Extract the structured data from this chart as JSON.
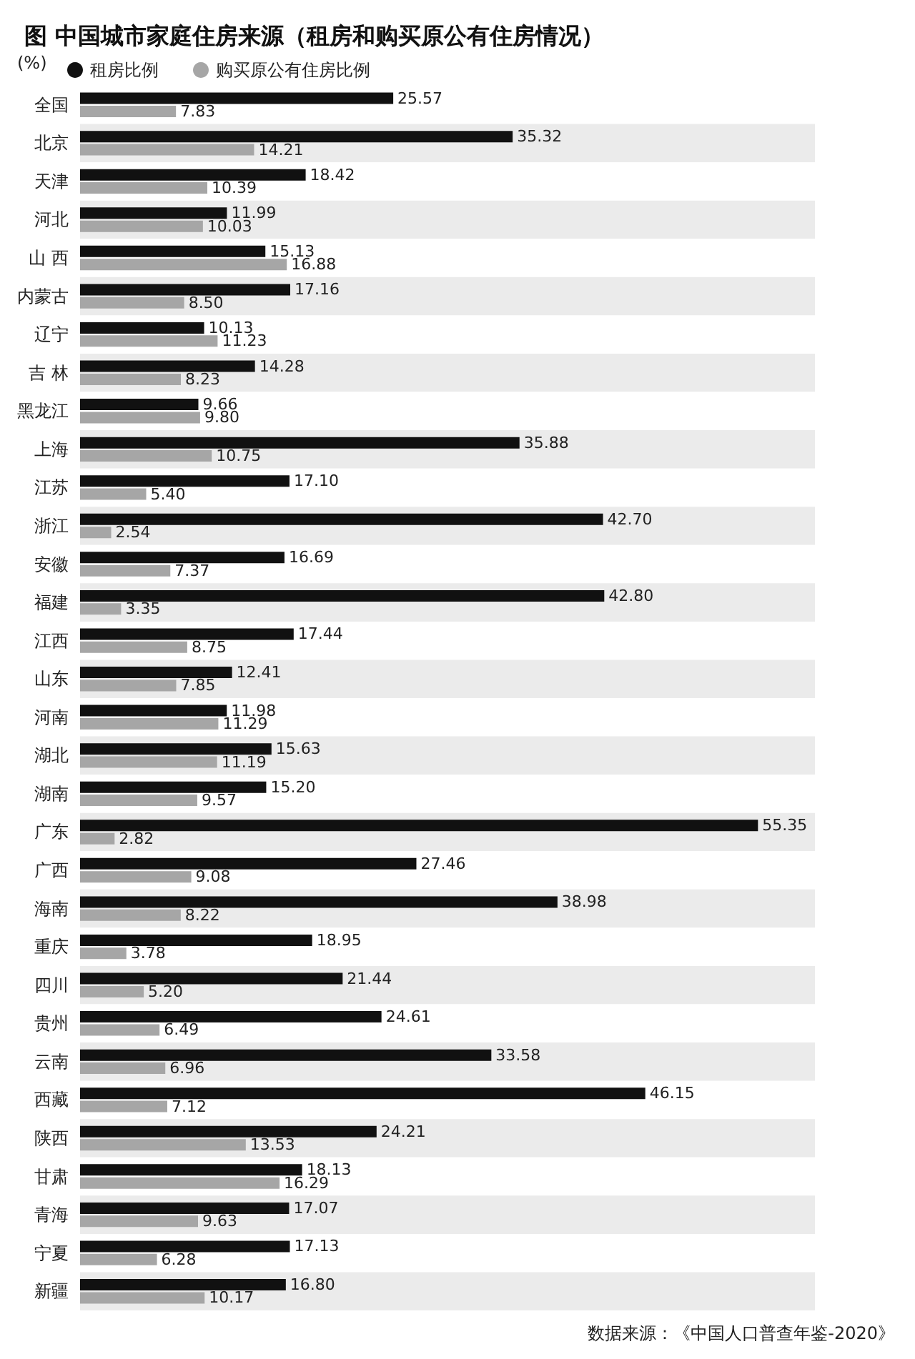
{
  "chart_data": {
    "type": "bar",
    "orientation": "horizontal",
    "title": "图 中国城市家庭住房来源（租房和购买原公有住房情况）",
    "legend_title": "(%)",
    "legend": "top left",
    "categories": [
      "全国",
      "北京",
      "天津",
      "河北",
      "山 西",
      "内蒙古",
      "辽宁",
      "吉 林",
      "黑龙江",
      "上海",
      "江苏",
      "浙江",
      "安徽",
      "福建",
      "江西",
      "山东",
      "河南",
      "湖北",
      "湖南",
      "广东",
      "广西",
      "海南",
      "重庆",
      "四川",
      "贵州",
      "云南",
      "西藏",
      "陕西",
      "甘肃",
      "青海",
      "宁夏",
      "新疆"
    ],
    "series": [
      {
        "name": "租房比例",
        "color": "#111111",
        "values": [
          25.57,
          35.32,
          18.42,
          11.99,
          15.13,
          17.16,
          10.13,
          14.28,
          9.66,
          35.88,
          17.1,
          42.7,
          16.69,
          42.8,
          17.44,
          12.41,
          11.98,
          15.63,
          15.2,
          55.35,
          27.46,
          38.98,
          18.95,
          21.44,
          24.61,
          33.58,
          46.15,
          24.21,
          18.13,
          17.07,
          17.13,
          16.8
        ],
        "value_labels": [
          "25.57",
          "35.32",
          "18.42",
          "11.99",
          "15.13",
          "17.16",
          "10.13",
          "14.28",
          "9.66",
          "35.88",
          "17.10",
          "42.70",
          "16.69",
          "42.80",
          "17.44",
          "12.41",
          "11.98",
          "15.63",
          "15.20",
          "55.35",
          "27.46",
          "38.98",
          "18.95",
          "21.44",
          "24.61",
          "33.58",
          "46.15",
          "24.21",
          "18.13",
          "17.07",
          "17.13",
          "16.80"
        ]
      },
      {
        "name": "购买原公有住房比例",
        "color": "#a6a6a6",
        "values": [
          7.83,
          14.21,
          10.39,
          10.03,
          16.88,
          8.5,
          11.23,
          8.23,
          9.8,
          10.75,
          5.4,
          2.54,
          7.37,
          3.35,
          8.75,
          7.85,
          11.29,
          11.19,
          9.57,
          2.82,
          9.08,
          8.22,
          3.78,
          5.2,
          6.49,
          6.96,
          7.12,
          13.53,
          16.29,
          9.63,
          6.28,
          10.17
        ],
        "value_labels": [
          "7.83",
          "14.21",
          "10.39",
          "10.03",
          "16.88",
          "8.50",
          "11.23",
          "8.23",
          "9.80",
          "10.75",
          "5.40",
          "2.54",
          "7.37",
          "3.35",
          "8.75",
          "7.85",
          "11.29",
          "11.19",
          "9.57",
          "2.82",
          "9.08",
          "8.22",
          "3.78",
          "5.20",
          "6.49",
          "6.96",
          "7.12",
          "13.53",
          "16.29",
          "9.63",
          "6.28",
          "10.17"
        ]
      }
    ],
    "annotations": [
      "数据来源：《中国人口普查年鉴-2020》"
    ]
  }
}
